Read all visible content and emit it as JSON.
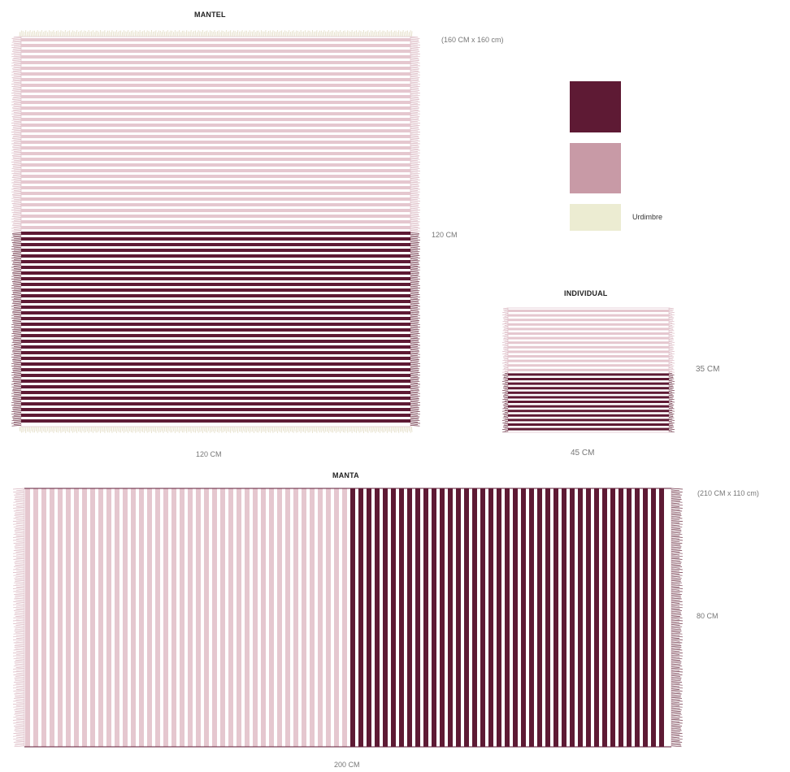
{
  "colors": {
    "dark": "#5e1a34",
    "pink": "#c89aa6",
    "light_pink": "#e5c7cf",
    "warp": "#ececd2",
    "fringe_dark": "#6e3346",
    "fringe_light": "#d8b4be",
    "fringe_cream": "#e2dcc4"
  },
  "mantel": {
    "title": "MANTEL",
    "size_note": "(160 CM x 160 cm)",
    "height_label": "120 CM",
    "width_label": "120 CM"
  },
  "legend": {
    "swatches": [
      "dark",
      "pink",
      "warp"
    ],
    "warp_label": "Urdimbre"
  },
  "individual": {
    "title": "INDIVIDUAL",
    "height_label": "35 CM",
    "width_label": "45 CM"
  },
  "manta": {
    "title": "MANTA",
    "size_note": "(210 CM x 110 cm)",
    "height_label": "80 CM",
    "width_label": "200 CM"
  }
}
